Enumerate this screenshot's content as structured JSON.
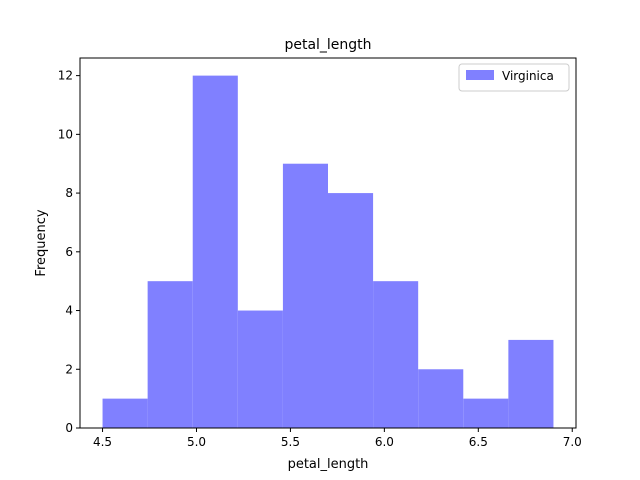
{
  "chart_data": {
    "type": "bar",
    "title": "petal_length",
    "xlabel": "petal_length",
    "ylabel": "Frequency",
    "bin_edges": [
      4.5,
      4.74,
      4.98,
      5.22,
      5.46,
      5.7,
      5.94,
      6.18,
      6.42,
      6.66,
      6.9
    ],
    "series": [
      {
        "name": "Virginica",
        "values": [
          1,
          5,
          12,
          4,
          9,
          8,
          5,
          2,
          1,
          3
        ],
        "color": "#8080ff"
      }
    ],
    "xlim": [
      4.38,
      7.02
    ],
    "ylim": [
      0,
      12.6
    ],
    "xticks": [
      4.5,
      5.0,
      5.5,
      6.0,
      6.5,
      7.0
    ],
    "xtick_labels": [
      "4.5",
      "5.0",
      "5.5",
      "6.0",
      "6.5",
      "7.0"
    ],
    "yticks": [
      0,
      2,
      4,
      6,
      8,
      10,
      12
    ],
    "ytick_labels": [
      "0",
      "2",
      "4",
      "6",
      "8",
      "10",
      "12"
    ],
    "grid": false,
    "legend": "top-right"
  }
}
